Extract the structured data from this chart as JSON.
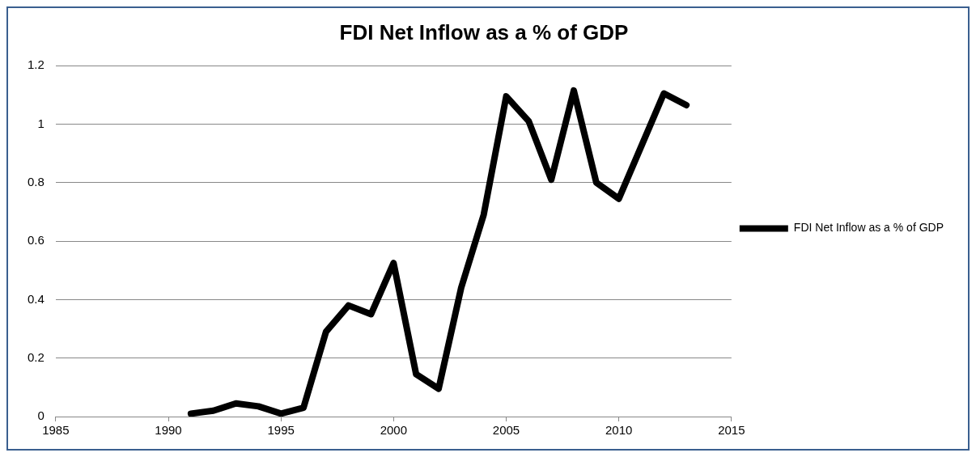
{
  "chart_data": {
    "type": "line",
    "title": "FDI Net Inflow as a % of GDP",
    "x": [
      1991,
      1992,
      1993,
      1994,
      1995,
      1996,
      1997,
      1998,
      1999,
      2000,
      2001,
      2002,
      2003,
      2004,
      2005,
      2006,
      2007,
      2008,
      2009,
      2010,
      2011,
      2012,
      2013
    ],
    "series": [
      {
        "name": "FDI Net Inflow as a % of GDP",
        "color": "#000000",
        "values": [
          0.01,
          0.02,
          0.045,
          0.035,
          0.01,
          0.03,
          0.29,
          0.38,
          0.35,
          0.525,
          0.145,
          0.095,
          0.44,
          0.69,
          1.095,
          1.01,
          0.81,
          1.115,
          0.8,
          0.745,
          0.925,
          1.105,
          1.065
        ]
      }
    ],
    "xlim": [
      1985,
      2015
    ],
    "xticks": [
      1985,
      1990,
      1995,
      2000,
      2005,
      2010,
      2015
    ],
    "ylim": [
      0,
      1.2
    ],
    "yticks": [
      0,
      0.2,
      0.4,
      0.6,
      0.8,
      1,
      1.2
    ],
    "grid": "y",
    "legend": "right",
    "marker": "none",
    "line_style": "solid"
  }
}
